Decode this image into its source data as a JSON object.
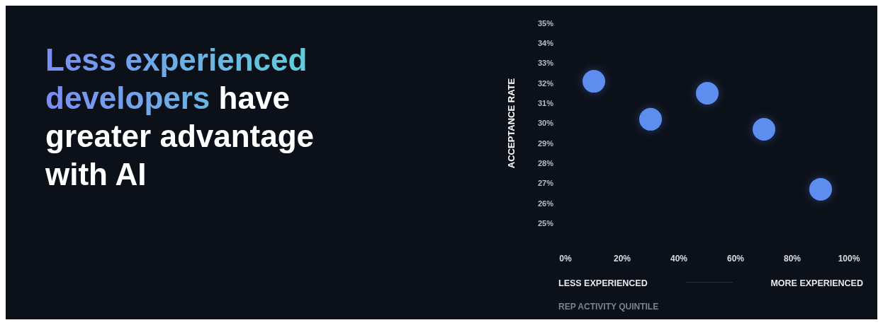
{
  "chart_data": {
    "type": "scatter",
    "title": "Less experienced developers have greater advantage with AI",
    "xlabel": "REP ACTIVITY QUINTILE",
    "ylabel": "ACCEPTANCE RATE",
    "x": [
      10,
      30,
      50,
      70,
      90
    ],
    "series": [
      {
        "color": "#5b8def",
        "values": [
          32.1,
          30.2,
          31.5,
          29.7,
          26.7
        ]
      }
    ],
    "xlim": [
      0,
      100
    ],
    "xticks": [
      {
        "value": 0,
        "label": "0%"
      },
      {
        "value": 20,
        "label": "20%"
      },
      {
        "value": 40,
        "label": "40%"
      },
      {
        "value": 60,
        "label": "60%"
      },
      {
        "value": 80,
        "label": "80%"
      },
      {
        "value": 100,
        "label": "100%"
      }
    ],
    "ylim": [
      25,
      35
    ],
    "yticks": [
      {
        "value": 25,
        "label": "25%"
      },
      {
        "value": 26,
        "label": "26%"
      },
      {
        "value": 27,
        "label": "27%"
      },
      {
        "value": 28,
        "label": "28%"
      },
      {
        "value": 29,
        "label": "29%"
      },
      {
        "value": 30,
        "label": "30%"
      },
      {
        "value": 31,
        "label": "31%"
      },
      {
        "value": 32,
        "label": "32%"
      },
      {
        "value": 33,
        "label": "33%"
      },
      {
        "value": 34,
        "label": "34%"
      },
      {
        "value": 35,
        "label": "35%"
      }
    ],
    "annotations": [
      "LESS EXPERIENCED",
      "MORE EXPERIENCED"
    ],
    "marker": "circle",
    "grid": false
  }
}
